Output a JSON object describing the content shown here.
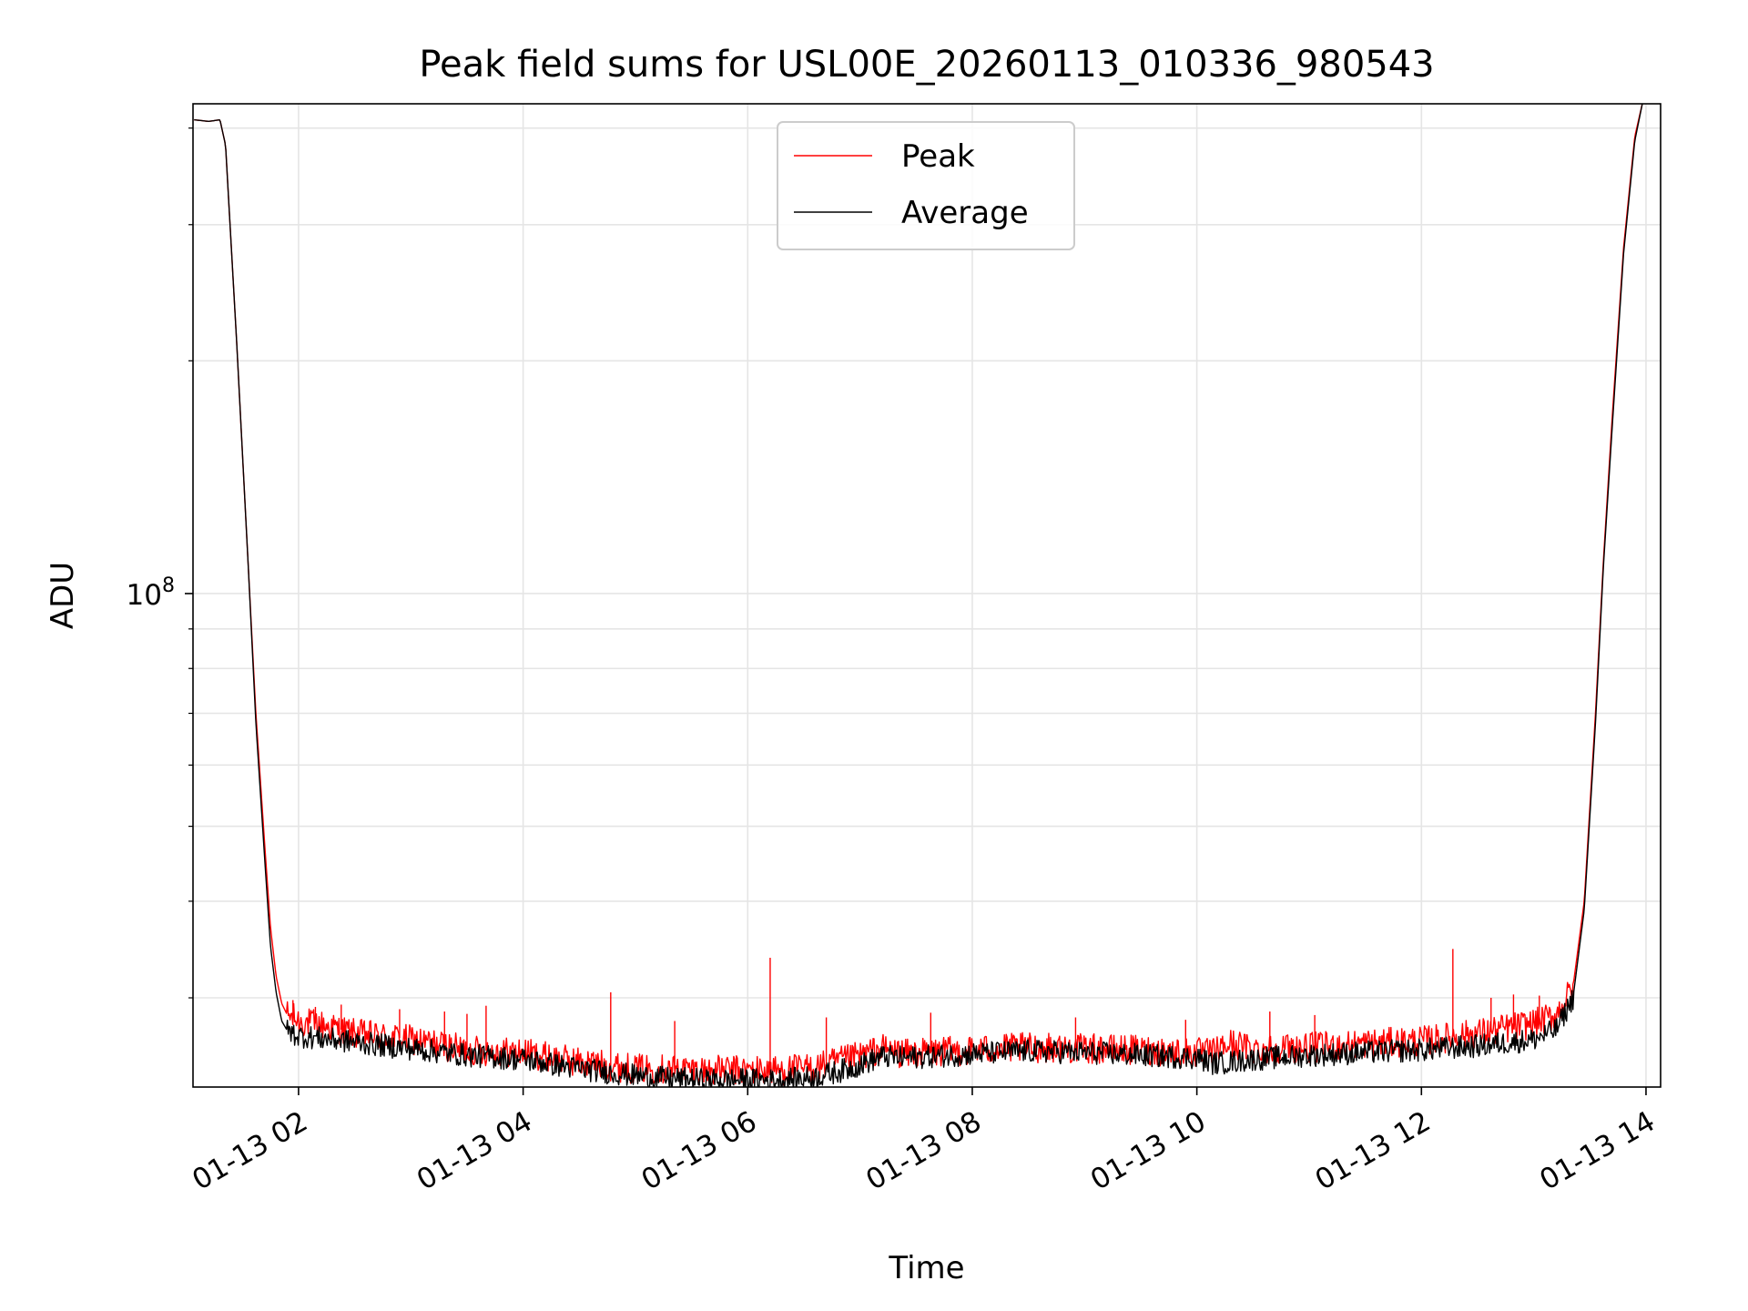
{
  "chart_data": {
    "type": "line",
    "title": "Peak field sums for USL00E_20260113_010336_980543",
    "xlabel": "Time",
    "ylabel": "ADU",
    "scale_y": "log",
    "xlim": [
      1.06,
      14.13
    ],
    "ylim": [
      23000000,
      430000000
    ],
    "grid": true,
    "legend_position": "top-center",
    "x_ticks": [
      {
        "value": 2,
        "label": "01-13 02"
      },
      {
        "value": 4,
        "label": "01-13 04"
      },
      {
        "value": 6,
        "label": "01-13 06"
      },
      {
        "value": 8,
        "label": "01-13 08"
      },
      {
        "value": 10,
        "label": "01-13 10"
      },
      {
        "value": 12,
        "label": "01-13 12"
      },
      {
        "value": 14,
        "label": "01-13 14"
      }
    ],
    "y_major_tick": {
      "value": 100000000,
      "label_base": "10",
      "label_exp": "8"
    },
    "y_minor_ticks": [
      30000000,
      40000000,
      50000000,
      60000000,
      70000000,
      80000000,
      90000000,
      200000000,
      300000000,
      400000000
    ],
    "series": [
      {
        "name": "Peak",
        "color": "#ff0000",
        "x": [
          1.07,
          1.2,
          1.3,
          1.35,
          1.45,
          1.55,
          1.62,
          1.7,
          1.75,
          1.8,
          1.85,
          1.9,
          1.95,
          2.0,
          2.2,
          2.5,
          3.0,
          3.5,
          4.0,
          4.5,
          5.0,
          5.3,
          5.6,
          6.0,
          6.3,
          6.6,
          6.9,
          7.2,
          7.4,
          7.6,
          8.0,
          8.5,
          9.0,
          9.5,
          10.0,
          10.15,
          10.3,
          10.5,
          11.0,
          11.5,
          12.0,
          12.5,
          13.0,
          13.2,
          13.35,
          13.45,
          13.55,
          13.62,
          13.7,
          13.8,
          13.9,
          13.97
        ],
        "y": [
          410000000,
          408000000,
          410000000,
          380000000,
          210000000,
          110000000,
          70000000,
          47000000,
          37000000,
          32000000,
          29500000,
          28500000,
          28300000,
          28000000,
          27700000,
          27000000,
          26500000,
          25700000,
          25500000,
          24800000,
          24300000,
          24300000,
          24200000,
          24200000,
          24200000,
          24400000,
          25000000,
          25800000,
          25400000,
          25500000,
          25700000,
          25900000,
          25800000,
          25700000,
          25500000,
          25500000,
          26200000,
          25800000,
          25900000,
          26200000,
          26400000,
          27000000,
          27800000,
          28500000,
          31000000,
          40000000,
          70000000,
          110000000,
          170000000,
          280000000,
          390000000,
          432000000
        ]
      },
      {
        "name": "Average",
        "color": "#000000",
        "x": [
          1.07,
          1.2,
          1.3,
          1.35,
          1.45,
          1.55,
          1.62,
          1.7,
          1.75,
          1.8,
          1.85,
          1.9,
          1.95,
          2.0,
          2.2,
          2.5,
          3.0,
          3.5,
          4.0,
          4.5,
          5.0,
          5.3,
          5.6,
          6.0,
          6.3,
          6.6,
          6.9,
          7.2,
          7.4,
          7.6,
          8.0,
          8.5,
          9.0,
          9.5,
          10.0,
          10.15,
          10.3,
          10.5,
          11.0,
          11.5,
          12.0,
          12.5,
          13.0,
          13.2,
          13.35,
          13.45,
          13.55,
          13.62,
          13.7,
          13.8,
          13.9,
          13.97
        ],
        "y": [
          410000000,
          408000000,
          410000000,
          380000000,
          210000000,
          110000000,
          68000000,
          45000000,
          35000000,
          30500000,
          28000000,
          27200000,
          27000000,
          26800000,
          26600000,
          26300000,
          25800000,
          25300000,
          25000000,
          24300000,
          23800000,
          23600000,
          23500000,
          23500000,
          23500000,
          23700000,
          24300000,
          25200000,
          25100000,
          25200000,
          25400000,
          25600000,
          25500000,
          25300000,
          25100000,
          24700000,
          24800000,
          25000000,
          25300000,
          25500000,
          25700000,
          26000000,
          26500000,
          27300000,
          30000000,
          39000000,
          68000000,
          108000000,
          165000000,
          275000000,
          385000000,
          432000000
        ]
      }
    ],
    "spikes": [
      {
        "x": 1.95,
        "y": 29800000
      },
      {
        "x": 2.15,
        "y": 29200000
      },
      {
        "x": 2.38,
        "y": 29400000
      },
      {
        "x": 2.9,
        "y": 29000000
      },
      {
        "x": 3.3,
        "y": 28800000
      },
      {
        "x": 3.5,
        "y": 28600000
      },
      {
        "x": 3.67,
        "y": 29300000
      },
      {
        "x": 4.78,
        "y": 30500000
      },
      {
        "x": 5.35,
        "y": 28000000
      },
      {
        "x": 6.2,
        "y": 33800000
      },
      {
        "x": 6.7,
        "y": 28300000
      },
      {
        "x": 7.63,
        "y": 28700000
      },
      {
        "x": 8.92,
        "y": 28300000
      },
      {
        "x": 9.9,
        "y": 28100000
      },
      {
        "x": 10.65,
        "y": 28800000
      },
      {
        "x": 11.05,
        "y": 28500000
      },
      {
        "x": 12.28,
        "y": 34700000
      },
      {
        "x": 12.62,
        "y": 30000000
      },
      {
        "x": 12.82,
        "y": 30300000
      },
      {
        "x": 13.05,
        "y": 30200000
      }
    ],
    "legend": [
      {
        "label": "Peak",
        "color": "#ff0000"
      },
      {
        "label": "Average",
        "color": "#000000"
      }
    ]
  }
}
